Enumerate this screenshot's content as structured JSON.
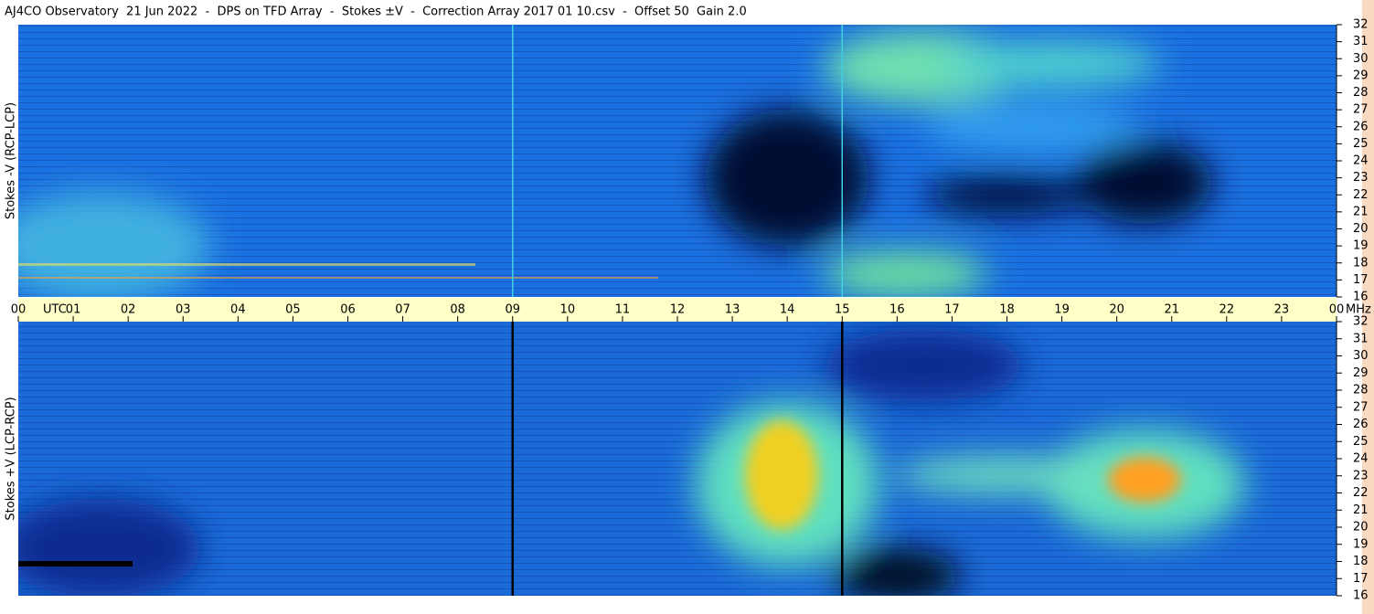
{
  "chart_data": {
    "type": "spectrogram",
    "title": "AJ4CO Observatory  21 Jun 2022  -  DPS on TFD Array  -  Stokes ±V  -  Correction Array 2017 01 10.csv  -  Offset 50  Gain 2.0",
    "panels": [
      {
        "ylabel": "Stokes -V (RCP-LCP)",
        "marker_color": "#40d0e0"
      },
      {
        "ylabel": "Stokes +V (LCP-RCP)",
        "marker_color": "#000000"
      }
    ],
    "x_unit": "UTC",
    "y_unit": "MHz",
    "xlim": [
      0,
      24
    ],
    "xticks": [
      {
        "value": 0,
        "label": "00"
      },
      {
        "value": 1,
        "label": "01"
      },
      {
        "value": 2,
        "label": "02"
      },
      {
        "value": 3,
        "label": "03"
      },
      {
        "value": 4,
        "label": "04"
      },
      {
        "value": 5,
        "label": "05"
      },
      {
        "value": 6,
        "label": "06"
      },
      {
        "value": 7,
        "label": "07"
      },
      {
        "value": 8,
        "label": "08"
      },
      {
        "value": 9,
        "label": "09"
      },
      10,
      11,
      12,
      13,
      14,
      15,
      16,
      17,
      18,
      19,
      20,
      21,
      22,
      23,
      {
        "value": 24,
        "label": "00"
      }
    ],
    "ylim": [
      16,
      32
    ],
    "yticks": [
      16,
      17,
      18,
      19,
      20,
      21,
      22,
      23,
      24,
      25,
      26,
      27,
      28,
      29,
      30,
      31,
      32
    ],
    "markers": [
      9,
      15
    ]
  }
}
